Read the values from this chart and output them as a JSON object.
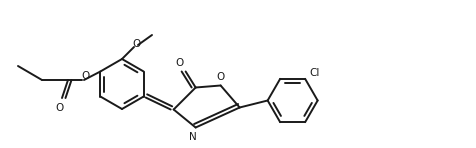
{
  "bg_color": "#ffffff",
  "line_color": "#1a1a1a",
  "line_width": 1.4,
  "figsize": [
    4.76,
    1.48
  ],
  "dpi": 100,
  "xlim": [
    0,
    4.76
  ],
  "ylim": [
    0,
    1.48
  ]
}
